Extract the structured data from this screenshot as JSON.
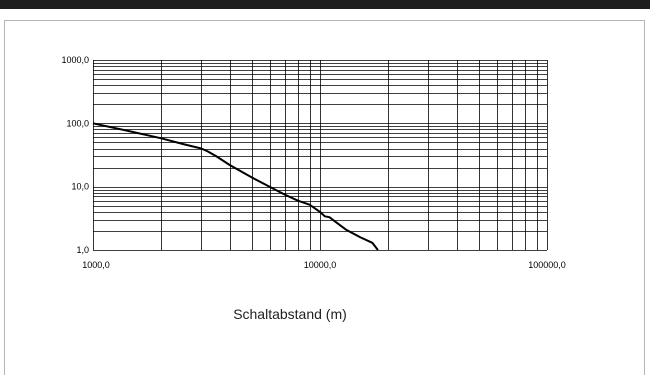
{
  "chart_data": {
    "type": "line",
    "x_scale": "log",
    "y_scale": "log",
    "xlim": [
      1000,
      100000
    ],
    "ylim": [
      1,
      1000
    ],
    "grid": true,
    "xlabel": "Schaltabstand (m)",
    "ylabel": "",
    "x_tick_labels": [
      "1000,0",
      "10000,0",
      "100000,0"
    ],
    "y_tick_labels": [
      "1000,0",
      "100,0",
      "10,0",
      "1,0"
    ],
    "x_ticks": [
      1000,
      10000,
      100000
    ],
    "y_ticks": [
      1000,
      100,
      10,
      1
    ],
    "series": [
      {
        "x": [
          1000,
          1500,
          2000,
          2500,
          3000,
          3200,
          3500,
          4000,
          5000,
          6000,
          7000,
          8000,
          9000,
          10000,
          10500,
          11000,
          12000,
          13000,
          15000,
          17000,
          18000
        ],
        "y": [
          100,
          73,
          58,
          47,
          40,
          36,
          30,
          22,
          14,
          10,
          7.5,
          6,
          5.2,
          4,
          3.4,
          3.3,
          2.6,
          2.1,
          1.6,
          1.3,
          1.0
        ]
      }
    ],
    "colors": {
      "line": "#000000",
      "grid": "#000000",
      "background": "#ffffff"
    }
  }
}
